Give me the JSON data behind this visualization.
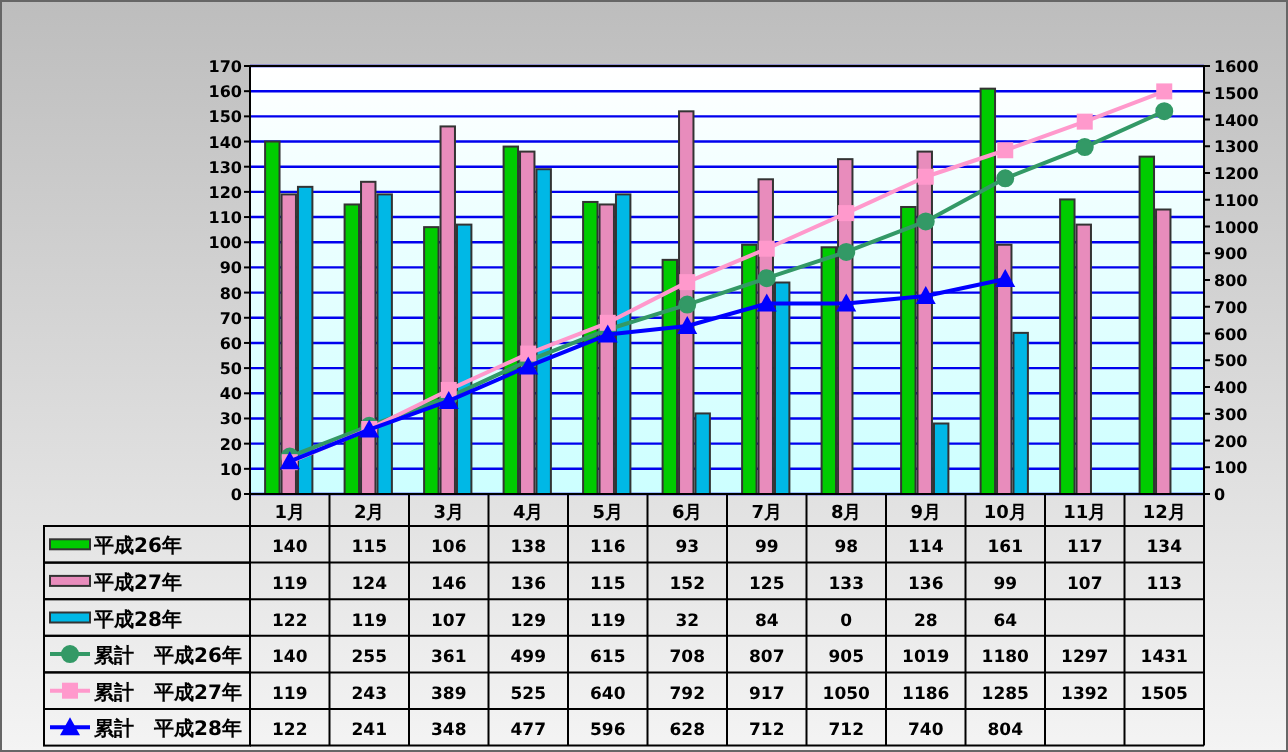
{
  "chart_data": {
    "type": "bar",
    "categories": [
      "1月",
      "2月",
      "3月",
      "4月",
      "5月",
      "6月",
      "7月",
      "8月",
      "9月",
      "10月",
      "11月",
      "12月"
    ],
    "series": [
      {
        "name": "平成26年",
        "color": "#00cc00",
        "values": [
          140,
          115,
          106,
          138,
          116,
          93,
          99,
          98,
          114,
          161,
          117,
          134
        ]
      },
      {
        "name": "平成27年",
        "color": "#e88cbc",
        "values": [
          119,
          124,
          146,
          136,
          115,
          152,
          125,
          133,
          136,
          99,
          107,
          113
        ]
      },
      {
        "name": "平成28年",
        "color": "#00b8e6",
        "values": [
          122,
          119,
          107,
          129,
          119,
          32,
          84,
          0,
          28,
          64,
          null,
          null
        ]
      },
      {
        "name": "累計　平成26年",
        "type": "line",
        "axis": "y2",
        "marker": "circle",
        "color": "#339966",
        "values": [
          140,
          255,
          361,
          499,
          615,
          708,
          807,
          905,
          1019,
          1180,
          1297,
          1431
        ]
      },
      {
        "name": "累計　平成27年",
        "type": "line",
        "axis": "y2",
        "marker": "square",
        "color": "#ff99cc",
        "values": [
          119,
          243,
          389,
          525,
          640,
          792,
          917,
          1050,
          1186,
          1285,
          1392,
          1505
        ]
      },
      {
        "name": "累計　平成28年",
        "type": "line",
        "axis": "y2",
        "marker": "triangle",
        "color": "#0000ff",
        "values": [
          122,
          241,
          348,
          477,
          596,
          628,
          712,
          712,
          740,
          804,
          null,
          null
        ]
      }
    ],
    "ylim": [
      0,
      170
    ],
    "yticks": [
      0,
      10,
      20,
      30,
      40,
      50,
      60,
      70,
      80,
      90,
      100,
      110,
      120,
      130,
      140,
      150,
      160,
      170
    ],
    "y2lim": [
      0,
      1600
    ],
    "y2ticks": [
      0,
      100,
      200,
      300,
      400,
      500,
      600,
      700,
      800,
      900,
      1000,
      1100,
      1200,
      1300,
      1400,
      1500,
      1600
    ],
    "grid": "y",
    "legend": "bottom",
    "data_labels": true
  }
}
